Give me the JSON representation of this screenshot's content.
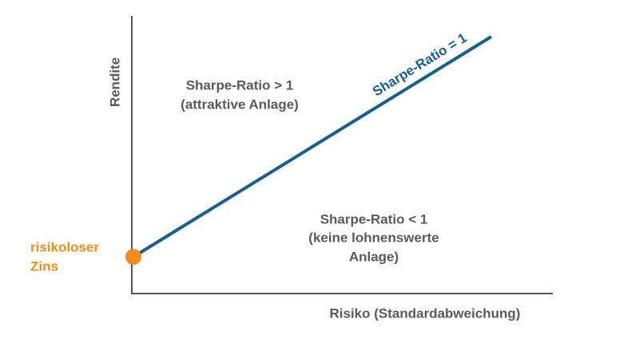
{
  "axes": {
    "y_label": "Rendite",
    "x_label": "Risiko (Standardabweichung)"
  },
  "line": {
    "label": "Sharpe-Ratio = 1"
  },
  "regions": [
    {
      "lines": [
        "Sharpe-Ratio > 1",
        "(attraktive Anlage)"
      ]
    },
    {
      "lines": [
        "Sharpe-Ratio < 1",
        "(keine lohnenswerte",
        "Anlage)"
      ]
    }
  ],
  "point": {
    "lines": [
      "risikoloser",
      "Zins"
    ]
  }
}
